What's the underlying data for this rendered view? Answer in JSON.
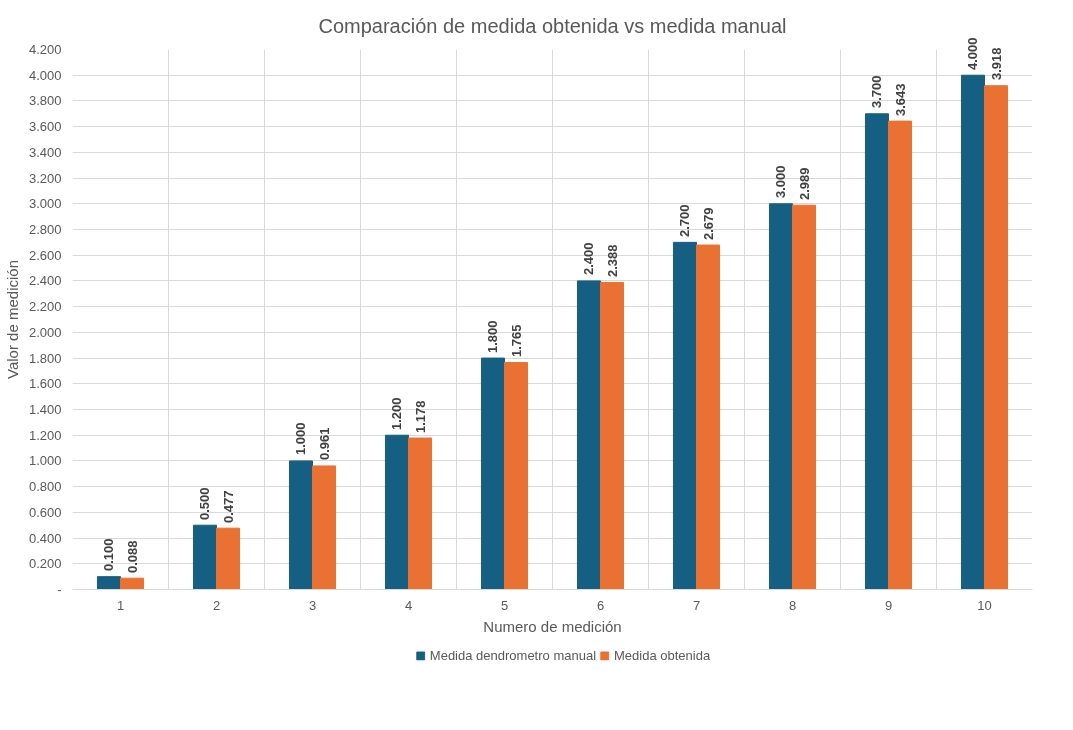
{
  "chart_data": {
    "type": "bar",
    "title": "Comparación de medida obtenida vs medida manual",
    "xlabel": "Numero de medición",
    "ylabel": "Valor de medición",
    "categories": [
      "1",
      "2",
      "3",
      "4",
      "5",
      "6",
      "7",
      "8",
      "9",
      "10"
    ],
    "series": [
      {
        "name": "Medida dendrometro manual",
        "color": "#156082",
        "values": [
          0.1,
          0.5,
          1.0,
          1.2,
          1.8,
          2.4,
          2.7,
          3.0,
          3.7,
          4.0
        ],
        "value_labels": [
          "0.100",
          "0.500",
          "1.000",
          "1.200",
          "1.800",
          "2.400",
          "2.700",
          "3.000",
          "3.700",
          "4.000"
        ]
      },
      {
        "name": "Medida obtenida",
        "color": "#e97132",
        "values": [
          0.088,
          0.477,
          0.961,
          1.178,
          1.765,
          2.388,
          2.679,
          2.989,
          3.643,
          3.918
        ],
        "value_labels": [
          "0.088",
          "0.477",
          "0.961",
          "1.178",
          "1.765",
          "2.388",
          "2.679",
          "2.989",
          "3.643",
          "3.918"
        ]
      }
    ],
    "ylim": [
      0,
      4.2
    ],
    "yticks": [
      {
        "value": 0,
        "label": "-"
      },
      {
        "value": 0.2,
        "label": "0.200"
      },
      {
        "value": 0.4,
        "label": "0.400"
      },
      {
        "value": 0.6,
        "label": "0.600"
      },
      {
        "value": 0.8,
        "label": "0.800"
      },
      {
        "value": 1.0,
        "label": "1.000"
      },
      {
        "value": 1.2,
        "label": "1.200"
      },
      {
        "value": 1.4,
        "label": "1.400"
      },
      {
        "value": 1.6,
        "label": "1.600"
      },
      {
        "value": 1.8,
        "label": "1.800"
      },
      {
        "value": 2.0,
        "label": "2.000"
      },
      {
        "value": 2.2,
        "label": "2.200"
      },
      {
        "value": 2.4,
        "label": "2.400"
      },
      {
        "value": 2.6,
        "label": "2.600"
      },
      {
        "value": 2.8,
        "label": "2.800"
      },
      {
        "value": 3.0,
        "label": "3.000"
      },
      {
        "value": 3.2,
        "label": "3.200"
      },
      {
        "value": 3.4,
        "label": "3.400"
      },
      {
        "value": 3.6,
        "label": "3.600"
      },
      {
        "value": 3.8,
        "label": "3.800"
      },
      {
        "value": 4.0,
        "label": "4.000"
      },
      {
        "value": 4.2,
        "label": "4.200"
      }
    ],
    "grid": true,
    "legend": "bottom"
  }
}
